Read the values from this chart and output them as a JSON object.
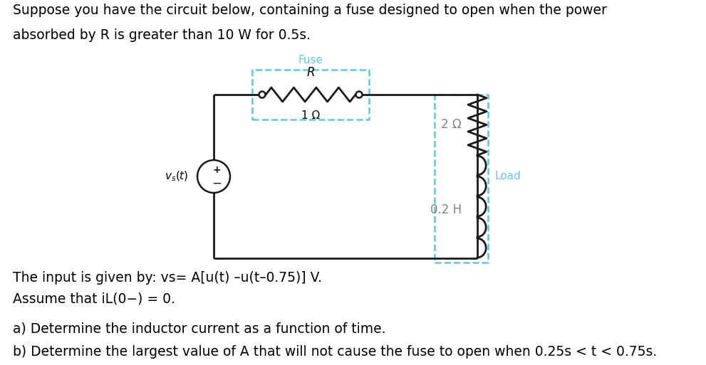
{
  "title_line1": "Suppose you have the circuit below, containing a fuse designed to open when the power",
  "title_line2": "absorbed by R is greater than 10 W for 0.5s.",
  "fuse_label": "Fuse",
  "R_label": "R",
  "R_value": "1 Ω",
  "R2_value": "2 Ω",
  "L_value": "0.2 H",
  "load_label": "Load",
  "vs_label": "v",
  "vs_sub": "s",
  "vs_rest": "(t)",
  "input_line": "The input is given by: vs= A[u(t) –u(t–0.75)] V.",
  "assume_line1": "Assume that i",
  "assume_line2": "L",
  "assume_line3": "(0−) = 0.",
  "part_a": "a) Determine the inductor current as a function of time.",
  "part_b": "b) Determine the largest value of A that will not cause the fuse to open when 0.25s < t < 0.75s.",
  "bg_color": "#ffffff",
  "text_color": "#000000",
  "gray_text": "#808080",
  "fuse_box_color": "#5BC8E8",
  "load_box_color": "#5BC8E8",
  "circuit_color": "#1a1a1a",
  "font_size_body": 13.5,
  "font_size_circuit": 12
}
